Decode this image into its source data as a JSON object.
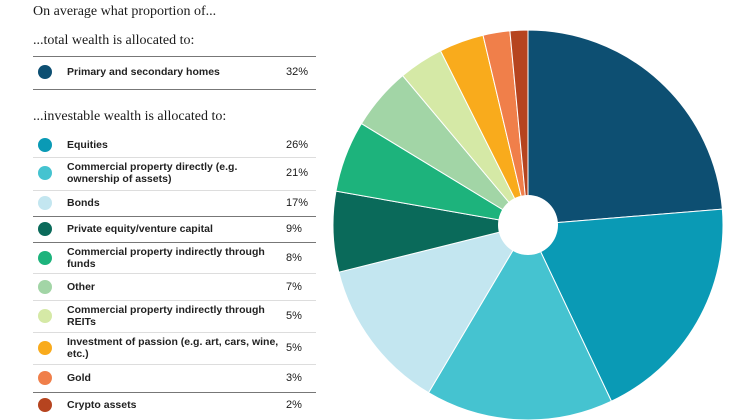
{
  "header": {
    "intro": "On average what proportion of...",
    "total_heading": "...total wealth is allocated to:",
    "investable_heading": "...investable wealth is allocated to:"
  },
  "chart_data": {
    "type": "pie",
    "donut": true,
    "start": "12 o'clock, clockwise",
    "total": [
      {
        "label": "Primary and secondary homes",
        "value": 32,
        "display": "32%",
        "color": "#0d4f72"
      }
    ],
    "investable": [
      {
        "label": "Equities",
        "value": 26,
        "display": "26%",
        "color": "#0a9ab5"
      },
      {
        "label": "Commercial property directly (e.g. ownership of assets)",
        "value": 21,
        "display": "21%",
        "color": "#45c3d0"
      },
      {
        "label": "Bonds",
        "value": 17,
        "display": "17%",
        "color": "#c3e6f0"
      },
      {
        "label": "Private equity/venture capital",
        "value": 9,
        "display": "9%",
        "color": "#0a6a5a"
      },
      {
        "label": "Commercial property indirectly through funds",
        "value": 8,
        "display": "8%",
        "color": "#1db37c"
      },
      {
        "label": "Other",
        "value": 7,
        "display": "7%",
        "color": "#a2d5a6"
      },
      {
        "label": "Commercial property indirectly through REITs",
        "value": 5,
        "display": "5%",
        "color": "#d5e9a6"
      },
      {
        "label": "Investment of passion (e.g. art, cars, wine, etc.)",
        "value": 5,
        "display": "5%",
        "color": "#f9ab1c"
      },
      {
        "label": "Gold",
        "value": 3,
        "display": "3%",
        "color": "#f07f4a"
      },
      {
        "label": "Crypto assets",
        "value": 2,
        "display": "2%",
        "color": "#b6441f"
      }
    ]
  }
}
